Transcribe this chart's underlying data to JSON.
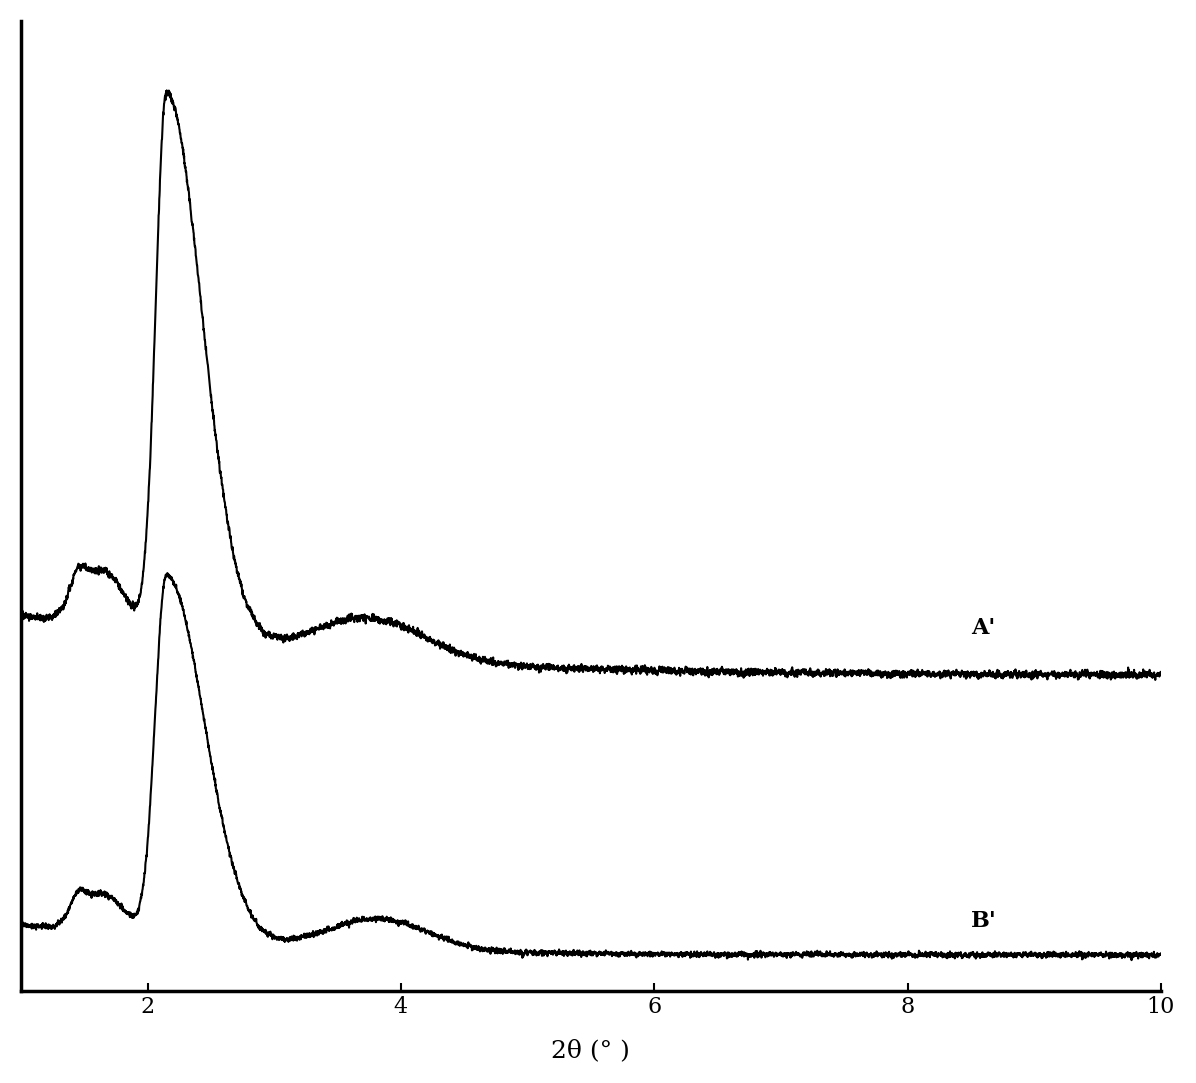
{
  "title": "",
  "xlabel": "2θ (° )",
  "xlabel_fontsize": 18,
  "xlim": [
    1.0,
    10.0
  ],
  "xticks": [
    2,
    4,
    6,
    8,
    10
  ],
  "line_color": "#000000",
  "linewidth": 1.5,
  "label_A": "A'",
  "label_B": "B'",
  "label_fontsize": 16,
  "figsize": [
    11.96,
    10.83
  ],
  "dpi": 100,
  "background_color": "#ffffff"
}
